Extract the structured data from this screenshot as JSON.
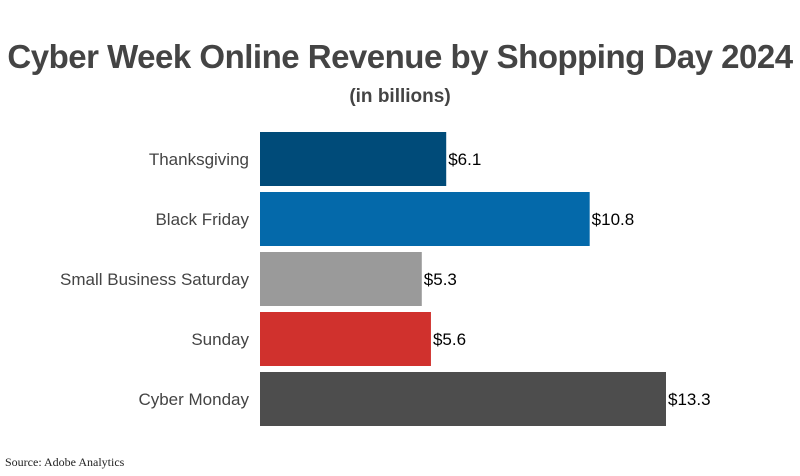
{
  "chart_data": {
    "type": "bar",
    "orientation": "horizontal",
    "title": "Cyber Week Online Revenue by Shopping Day 2024",
    "subtitle": "(in billions)",
    "categories": [
      "Thanksgiving",
      "Black Friday",
      "Small Business Saturday",
      "Sunday",
      "Cyber Monday"
    ],
    "values": [
      6.1,
      10.8,
      5.3,
      5.6,
      13.3
    ],
    "data_labels": [
      "$6.1",
      "$10.8",
      "$5.3",
      "$5.6",
      "$13.3"
    ],
    "colors": [
      "#004b79",
      "#0469aa",
      "#9a9a9a",
      "#d0312d",
      "#4d4d4d"
    ],
    "xlabel": "",
    "ylabel": "",
    "xlim": [
      0,
      13.3
    ],
    "grid": false,
    "legend": "none",
    "source": "Source: Adobe Analytics"
  }
}
